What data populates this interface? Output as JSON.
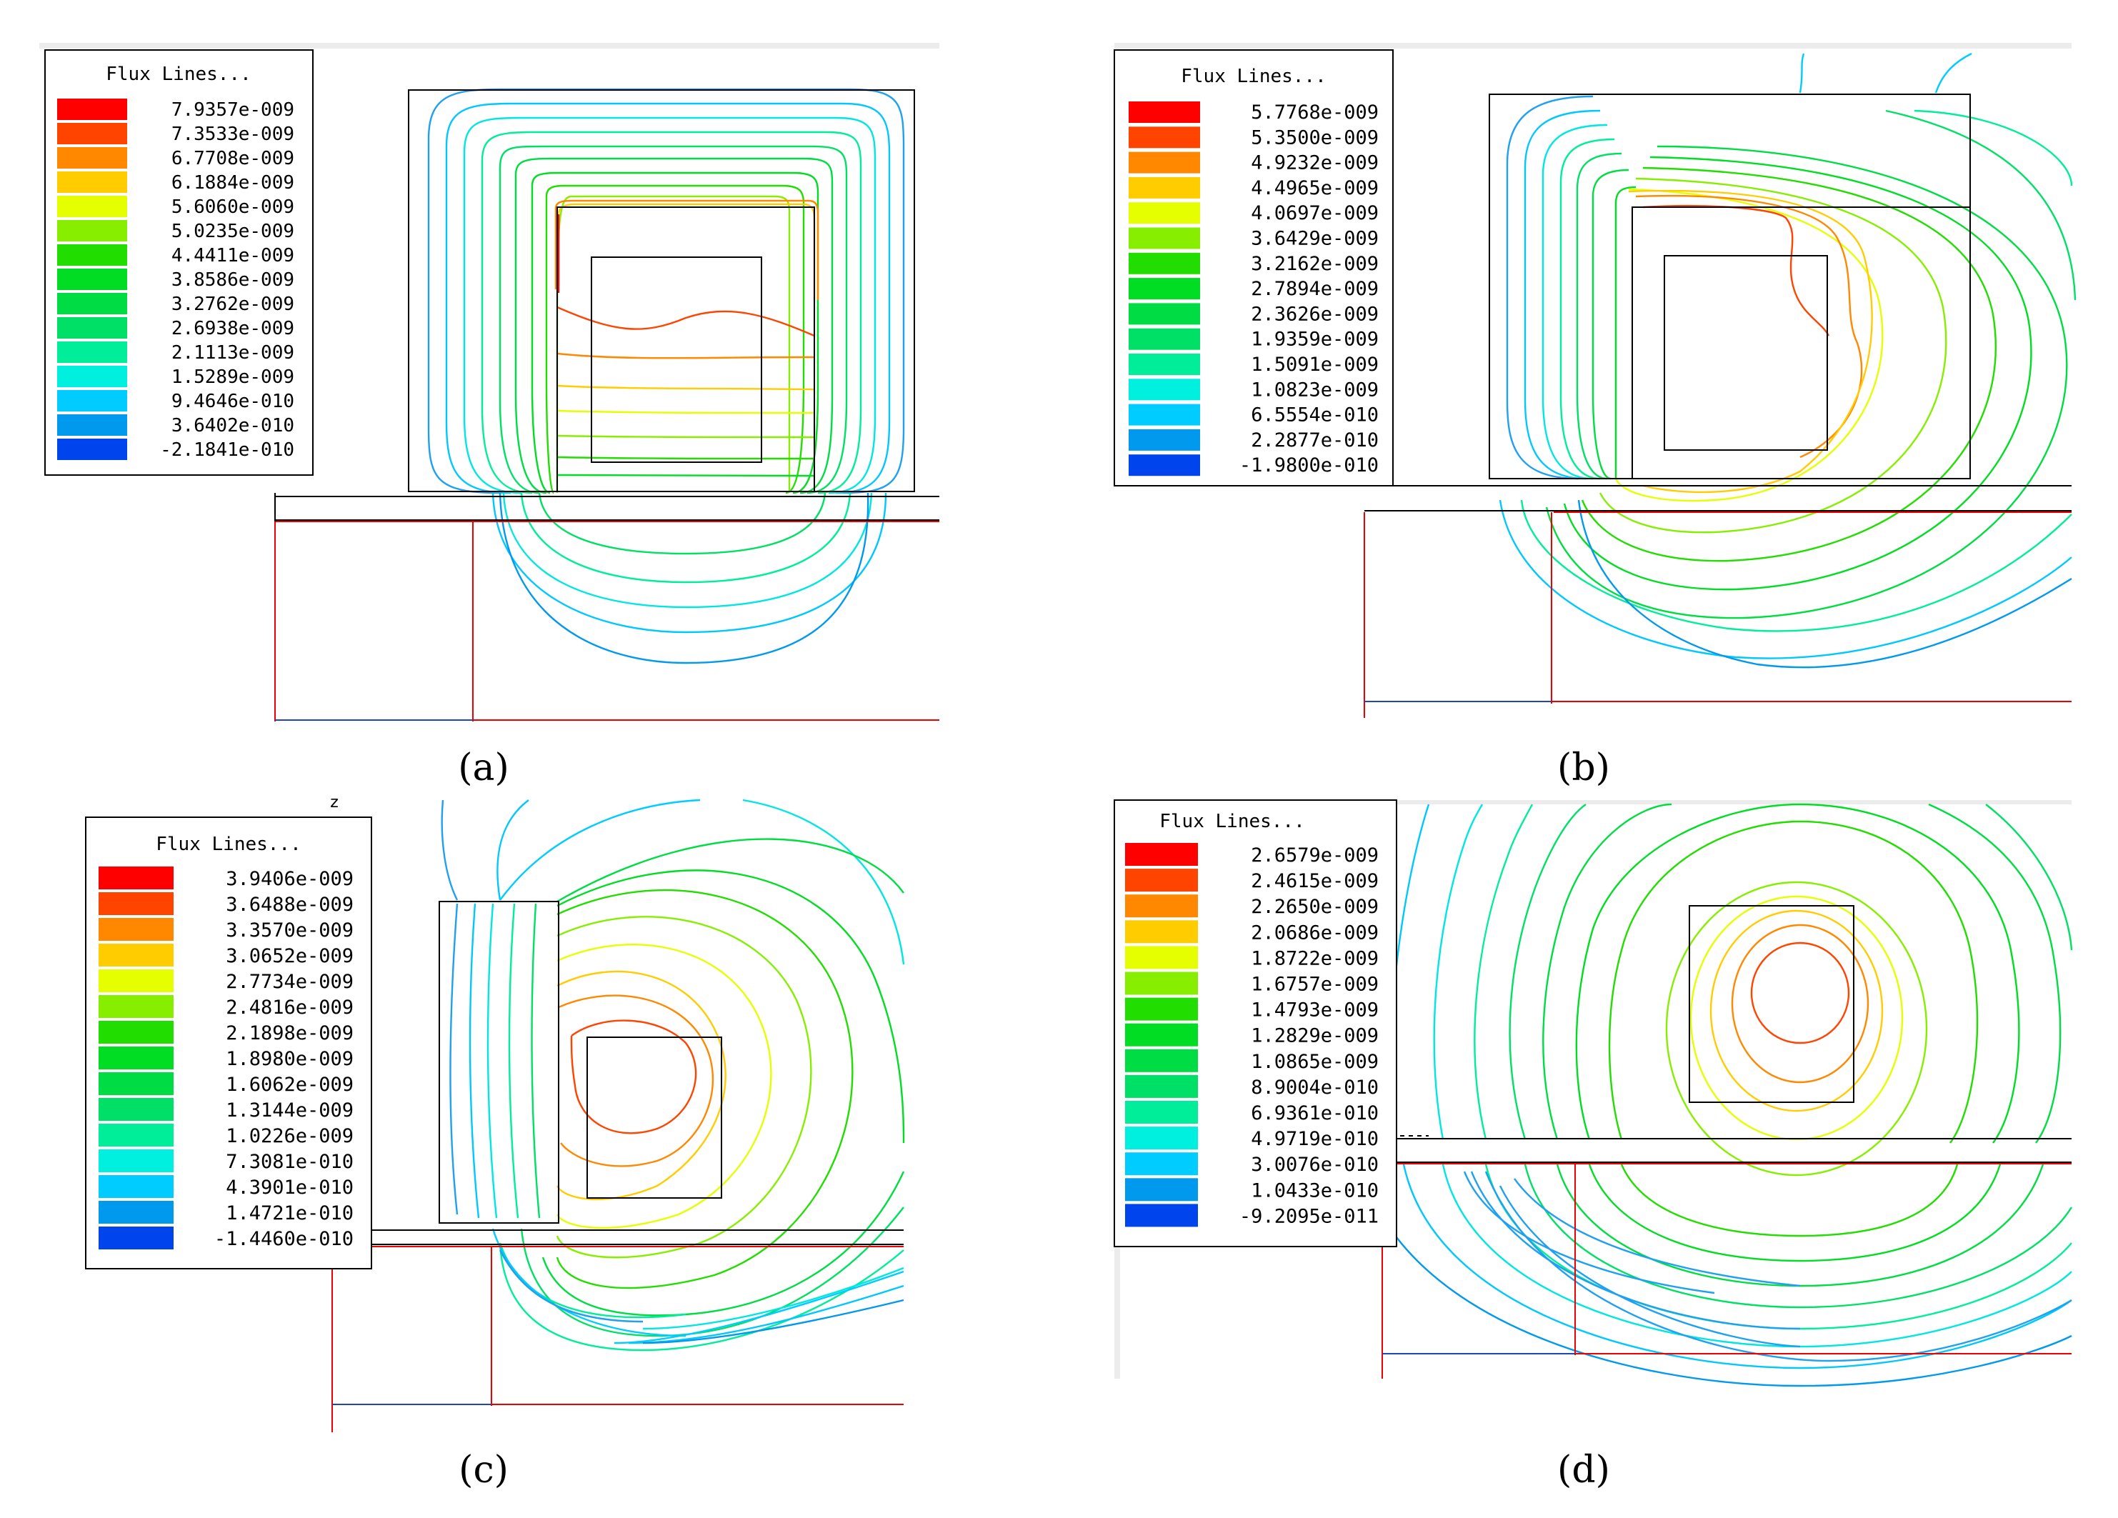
{
  "panels": [
    {
      "id": "a",
      "caption_letter": "a",
      "legend_title": "Flux Lines...",
      "legend": [
        {
          "value": "7.9357e-009",
          "color": "#ff0000"
        },
        {
          "value": "7.3533e-009",
          "color": "#ff4400"
        },
        {
          "value": "6.7708e-009",
          "color": "#ff8800"
        },
        {
          "value": "6.1884e-009",
          "color": "#ffcc00"
        },
        {
          "value": "5.6060e-009",
          "color": "#e6ff00"
        },
        {
          "value": "5.0235e-009",
          "color": "#88ee00"
        },
        {
          "value": "4.4411e-009",
          "color": "#22dd00"
        },
        {
          "value": "3.8586e-009",
          "color": "#00dd22"
        },
        {
          "value": "3.2762e-009",
          "color": "#00dd44"
        },
        {
          "value": "2.6938e-009",
          "color": "#00e066"
        },
        {
          "value": "2.1113e-009",
          "color": "#00ee99"
        },
        {
          "value": "1.5289e-009",
          "color": "#00f0e0"
        },
        {
          "value": "9.4646e-010",
          "color": "#00ccff"
        },
        {
          "value": "3.6402e-010",
          "color": "#0099ee"
        },
        {
          "value": "-2.1841e-010",
          "color": "#0044ee"
        }
      ]
    },
    {
      "id": "b",
      "caption_letter": "b",
      "legend_title": "Flux Lines...",
      "legend": [
        {
          "value": "5.7768e-009",
          "color": "#ff0000"
        },
        {
          "value": "5.3500e-009",
          "color": "#ff4400"
        },
        {
          "value": "4.9232e-009",
          "color": "#ff8800"
        },
        {
          "value": "4.4965e-009",
          "color": "#ffcc00"
        },
        {
          "value": "4.0697e-009",
          "color": "#e6ff00"
        },
        {
          "value": "3.6429e-009",
          "color": "#88ee00"
        },
        {
          "value": "3.2162e-009",
          "color": "#22dd00"
        },
        {
          "value": "2.7894e-009",
          "color": "#00dd22"
        },
        {
          "value": "2.3626e-009",
          "color": "#00dd44"
        },
        {
          "value": "1.9359e-009",
          "color": "#00e066"
        },
        {
          "value": "1.5091e-009",
          "color": "#00ee99"
        },
        {
          "value": "1.0823e-009",
          "color": "#00f0e0"
        },
        {
          "value": "6.5554e-010",
          "color": "#00ccff"
        },
        {
          "value": "2.2877e-010",
          "color": "#0099ee"
        },
        {
          "value": "-1.9800e-010",
          "color": "#0044ee"
        }
      ]
    },
    {
      "id": "c",
      "caption_letter": "c",
      "legend_title": "Flux Lines...",
      "axis_marker": "z",
      "legend": [
        {
          "value": "3.9406e-009",
          "color": "#ff0000"
        },
        {
          "value": "3.6488e-009",
          "color": "#ff4400"
        },
        {
          "value": "3.3570e-009",
          "color": "#ff8800"
        },
        {
          "value": "3.0652e-009",
          "color": "#ffcc00"
        },
        {
          "value": "2.7734e-009",
          "color": "#e6ff00"
        },
        {
          "value": "2.4816e-009",
          "color": "#88ee00"
        },
        {
          "value": "2.1898e-009",
          "color": "#22dd00"
        },
        {
          "value": "1.8980e-009",
          "color": "#00dd22"
        },
        {
          "value": "1.6062e-009",
          "color": "#00dd44"
        },
        {
          "value": "1.3144e-009",
          "color": "#00e066"
        },
        {
          "value": "1.0226e-009",
          "color": "#00ee99"
        },
        {
          "value": "7.3081e-010",
          "color": "#00f0e0"
        },
        {
          "value": "4.3901e-010",
          "color": "#00ccff"
        },
        {
          "value": "1.4721e-010",
          "color": "#0099ee"
        },
        {
          "value": "-1.4460e-010",
          "color": "#0044ee"
        }
      ]
    },
    {
      "id": "d",
      "caption_letter": "d",
      "legend_title": "Flux Lines...",
      "legend": [
        {
          "value": "2.6579e-009",
          "color": "#ff0000"
        },
        {
          "value": "2.4615e-009",
          "color": "#ff4400"
        },
        {
          "value": "2.2650e-009",
          "color": "#ff8800"
        },
        {
          "value": "2.0686e-009",
          "color": "#ffcc00"
        },
        {
          "value": "1.8722e-009",
          "color": "#e6ff00"
        },
        {
          "value": "1.6757e-009",
          "color": "#88ee00"
        },
        {
          "value": "1.4793e-009",
          "color": "#22dd00"
        },
        {
          "value": "1.2829e-009",
          "color": "#00dd22"
        },
        {
          "value": "1.0865e-009",
          "color": "#00dd44"
        },
        {
          "value": "8.9004e-010",
          "color": "#00e066"
        },
        {
          "value": "6.9361e-010",
          "color": "#00ee99"
        },
        {
          "value": "4.9719e-010",
          "color": "#00f0e0"
        },
        {
          "value": "3.0076e-010",
          "color": "#00ccff"
        },
        {
          "value": "1.0433e-010",
          "color": "#0099ee"
        },
        {
          "value": "-9.2095e-011",
          "color": "#0044ee"
        }
      ]
    }
  ]
}
